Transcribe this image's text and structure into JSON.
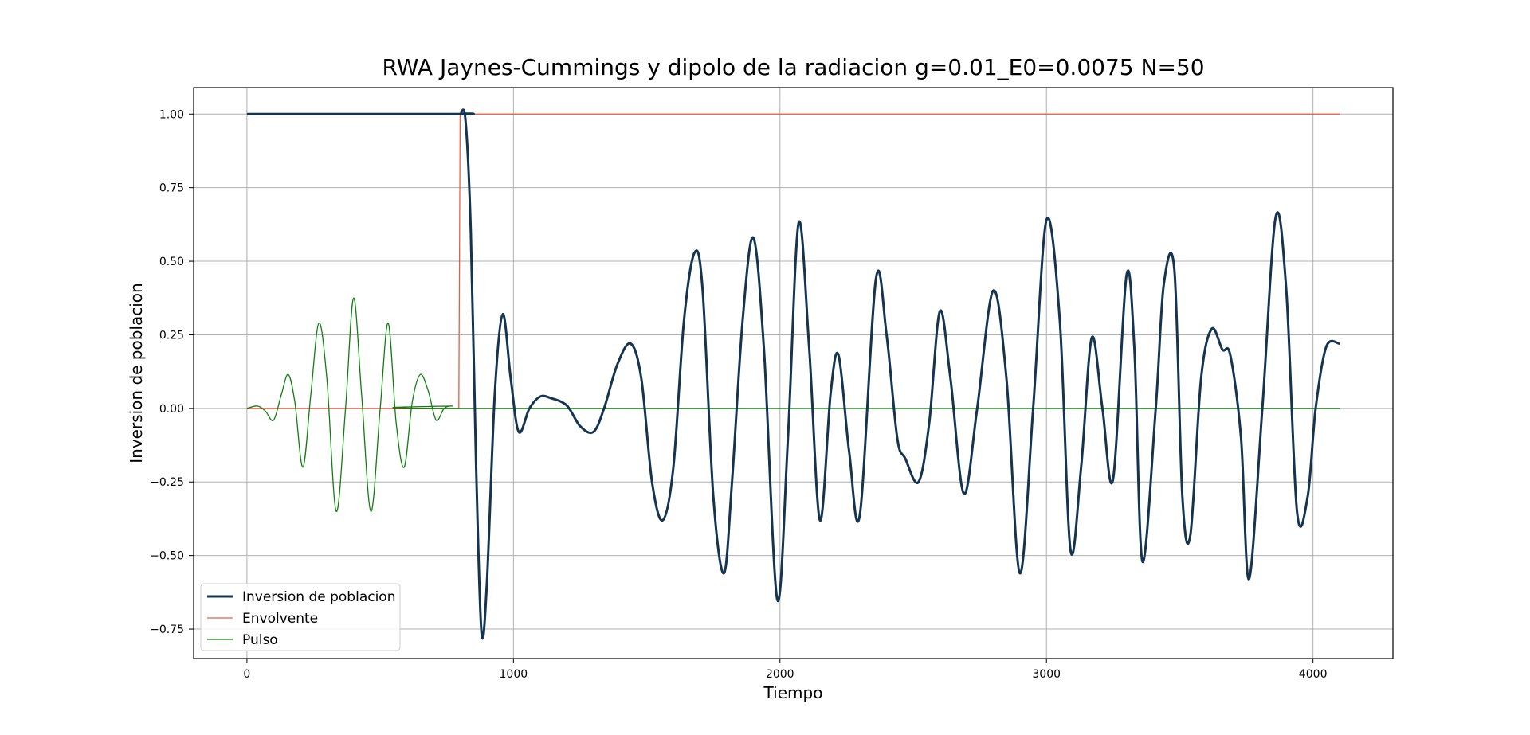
{
  "chart_data": {
    "type": "line",
    "title": "RWA Jaynes-Cummings y dipolo de la radiacion g=0.01_E0=0.0075 N=50",
    "xlabel": "Tiempo",
    "ylabel": "Inversion de poblacion",
    "xlim": [
      -200,
      4300
    ],
    "ylim": [
      -0.85,
      1.09
    ],
    "xticks": [
      0,
      1000,
      2000,
      3000,
      4000
    ],
    "yticks": [
      -0.75,
      -0.5,
      -0.25,
      0.0,
      0.25,
      0.5,
      0.75,
      1.0
    ],
    "grid": true,
    "legend_position": "lower-left",
    "series": [
      {
        "name": "Inversion de poblacion",
        "color": "#15344f",
        "x": [
          0,
          790,
          800,
          820,
          840,
          860,
          880,
          900,
          930,
          960,
          990,
          1020,
          1060,
          1100,
          1140,
          1200,
          1250,
          1300,
          1340,
          1390,
          1440,
          1480,
          1520,
          1560,
          1600,
          1640,
          1680,
          1710,
          1750,
          1790,
          1820,
          1860,
          1900,
          1940,
          1990,
          2030,
          2070,
          2110,
          2150,
          2190,
          2220,
          2260,
          2300,
          2360,
          2400,
          2440,
          2470,
          2520,
          2560,
          2600,
          2640,
          2690,
          2740,
          2800,
          2850,
          2900,
          2950,
          3000,
          3050,
          3090,
          3130,
          3170,
          3210,
          3250,
          3300,
          3330,
          3360,
          3410,
          3440,
          3480,
          3510,
          3540,
          3580,
          3620,
          3660,
          3690,
          3730,
          3760,
          3810,
          3860,
          3900,
          3940,
          3980,
          4010,
          4050,
          4100
        ],
        "y": [
          1.0,
          1.0,
          1.0,
          0.98,
          0.6,
          -0.2,
          -0.76,
          -0.6,
          0.05,
          0.32,
          0.1,
          -0.08,
          0.0,
          0.04,
          0.035,
          0.01,
          -0.06,
          -0.08,
          0.0,
          0.15,
          0.22,
          0.1,
          -0.25,
          -0.38,
          -0.2,
          0.3,
          0.53,
          0.4,
          -0.3,
          -0.56,
          -0.25,
          0.3,
          0.58,
          0.2,
          -0.65,
          -0.1,
          0.63,
          0.2,
          -0.38,
          0.05,
          0.18,
          -0.15,
          -0.36,
          0.44,
          0.25,
          -0.1,
          -0.17,
          -0.25,
          -0.05,
          0.33,
          0.1,
          -0.29,
          0.0,
          0.4,
          0.1,
          -0.56,
          0.0,
          0.64,
          0.3,
          -0.48,
          -0.2,
          0.24,
          0.0,
          -0.24,
          0.45,
          0.2,
          -0.52,
          0.0,
          0.42,
          0.47,
          -0.3,
          -0.43,
          0.1,
          0.27,
          0.2,
          0.18,
          -0.1,
          -0.58,
          0.0,
          0.65,
          0.4,
          -0.35,
          -0.3,
          0.0,
          0.21,
          0.22
        ]
      },
      {
        "name": "Envolvente",
        "color": "#f05a3c",
        "x": [
          0,
          795,
          800,
          4100
        ],
        "y": [
          0.0,
          0.0,
          1.0,
          1.0
        ]
      },
      {
        "name": "Pulso",
        "color": "#0f7f0f",
        "x": [
          0,
          40,
          70,
          100,
          130,
          155,
          180,
          210,
          240,
          270,
          300,
          335,
          370,
          400,
          430,
          465,
          500,
          530,
          560,
          590,
          620,
          650,
          680,
          710,
          740,
          770,
          800,
          4100
        ],
        "y": [
          0.0,
          0.008,
          -0.01,
          -0.04,
          0.05,
          0.115,
          0.02,
          -0.2,
          0.05,
          0.29,
          0.1,
          -0.35,
          0.0,
          0.375,
          0.05,
          -0.35,
          0.0,
          0.29,
          -0.05,
          -0.2,
          0.02,
          0.115,
          0.06,
          -0.04,
          0.0,
          0.008,
          0.0,
          0.0
        ]
      }
    ]
  }
}
